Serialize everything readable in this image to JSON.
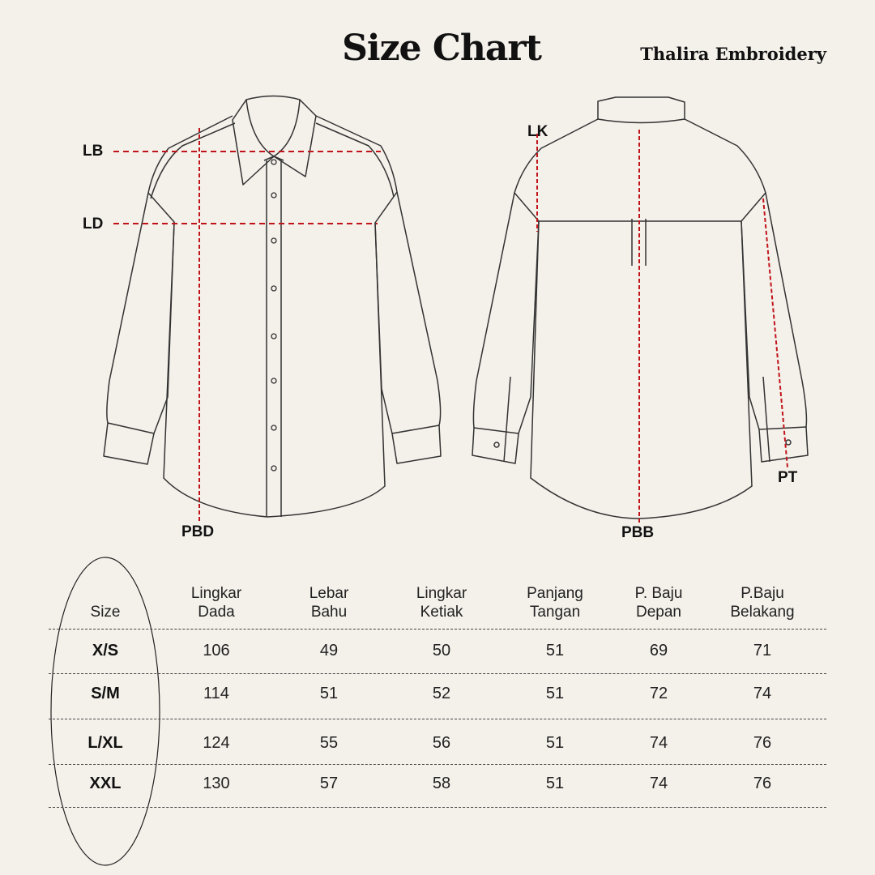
{
  "header": {
    "title": "Size Chart",
    "brand": "Thalira Embroidery"
  },
  "diagram": {
    "front_labels": {
      "lb": "LB",
      "ld": "LD",
      "pbd": "PBD"
    },
    "back_labels": {
      "lk": "LK",
      "pbb": "PBB",
      "pt": "PT"
    },
    "measure_line_color": "#c0141a"
  },
  "table": {
    "headers": [
      {
        "l1": "",
        "l2": "Size"
      },
      {
        "l1": "Lingkar",
        "l2": "Dada"
      },
      {
        "l1": "Lebar",
        "l2": "Bahu"
      },
      {
        "l1": "Lingkar",
        "l2": "Ketiak"
      },
      {
        "l1": "Panjang",
        "l2": "Tangan"
      },
      {
        "l1": "P. Baju",
        "l2": "Depan"
      },
      {
        "l1": "P.Baju",
        "l2": "Belakang"
      }
    ],
    "rows": [
      [
        "X/S",
        "106",
        "49",
        "50",
        "51",
        "69",
        "71"
      ],
      [
        "S/M",
        "114",
        "51",
        "52",
        "51",
        "72",
        "74"
      ],
      [
        "L/XL",
        "124",
        "55",
        "56",
        "51",
        "74",
        "76"
      ],
      [
        "XXL",
        "130",
        "57",
        "58",
        "51",
        "74",
        "76"
      ]
    ]
  }
}
